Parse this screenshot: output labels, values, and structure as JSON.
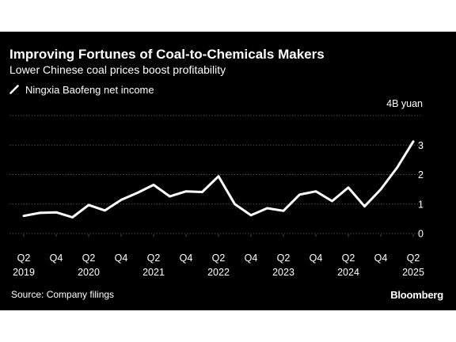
{
  "header": {
    "title": "Improving Fortunes of Coal-to-Chemicals Makers",
    "subtitle": "Lower Chinese coal prices boost profitability"
  },
  "footer": {
    "source": "Source: Company filings",
    "brand": "Bloomberg"
  },
  "colors": {
    "background": "#000000",
    "line": "#ffffff",
    "grid": "#4a4a4a",
    "text": "#ffffff"
  },
  "chart_data": {
    "type": "line",
    "title": "Improving Fortunes of Coal-to-Chemicals Makers",
    "subtitle": "Lower Chinese coal prices boost profitability",
    "unit_label": "4B yuan",
    "ylim": [
      0,
      4
    ],
    "y_ticks": [
      0,
      1,
      2,
      3
    ],
    "grid": true,
    "legend_position": "top-left",
    "x": [
      "2019Q2",
      "2019Q3",
      "2019Q4",
      "2020Q1",
      "2020Q2",
      "2020Q3",
      "2020Q4",
      "2021Q1",
      "2021Q2",
      "2021Q3",
      "2021Q4",
      "2022Q1",
      "2022Q2",
      "2022Q3",
      "2022Q4",
      "2023Q1",
      "2023Q2",
      "2023Q3",
      "2023Q4",
      "2024Q1",
      "2024Q2",
      "2024Q3",
      "2024Q4",
      "2025Q1",
      "2025Q2"
    ],
    "x_tick_labels": [
      {
        "q": "Q2",
        "year": "2019"
      },
      {
        "q": "Q4",
        "year": ""
      },
      {
        "q": "Q2",
        "year": "2020"
      },
      {
        "q": "Q4",
        "year": ""
      },
      {
        "q": "Q2",
        "year": "2021"
      },
      {
        "q": "Q4",
        "year": ""
      },
      {
        "q": "Q2",
        "year": "2022"
      },
      {
        "q": "Q4",
        "year": ""
      },
      {
        "q": "Q2",
        "year": "2023"
      },
      {
        "q": "Q4",
        "year": ""
      },
      {
        "q": "Q2",
        "year": "2024"
      },
      {
        "q": "Q4",
        "year": ""
      },
      {
        "q": "Q2",
        "year": "2025"
      }
    ],
    "series": [
      {
        "name": "Ningxia Baofeng net income",
        "values": [
          0.6,
          0.7,
          0.72,
          0.55,
          0.97,
          0.78,
          1.14,
          1.38,
          1.65,
          1.26,
          1.43,
          1.41,
          1.94,
          1.0,
          0.62,
          0.86,
          0.77,
          1.32,
          1.43,
          1.1,
          1.56,
          0.92,
          1.5,
          2.23,
          3.12
        ]
      }
    ]
  }
}
